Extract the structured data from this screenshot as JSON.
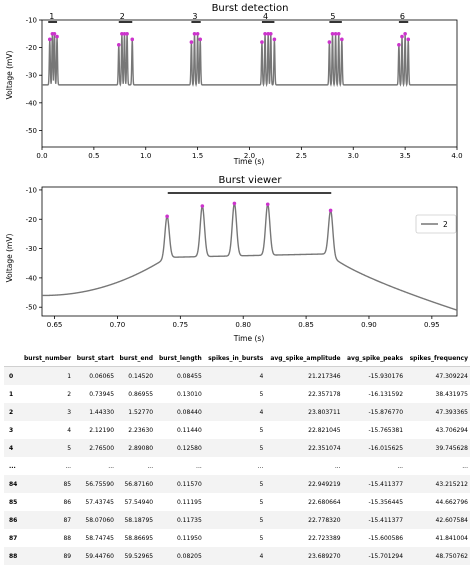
{
  "chart_data": [
    {
      "type": "line",
      "title": "Burst detection",
      "xlabel": "Time (s)",
      "ylabel": "Voltage (mV)",
      "xlim": [
        0.0,
        4.0
      ],
      "ylim": [
        -56,
        -10
      ],
      "xticks": [
        "0.0",
        "0.5",
        "1.0",
        "1.5",
        "2.0",
        "2.5",
        "3.0",
        "3.5",
        "4.0"
      ],
      "yticks": [
        "-10",
        "-20",
        "-30",
        "-40",
        "-50"
      ],
      "series_color": "#777777",
      "peak_color": "#cc33cc",
      "baseline_mV": -53,
      "burst_labels": [
        "1",
        "2",
        "3",
        "4",
        "5",
        "6"
      ],
      "bursts": [
        {
          "label": "1",
          "start": 0.06,
          "end": 0.145,
          "spikes_t": [
            0.075,
            0.1,
            0.12,
            0.145
          ],
          "peaks_mV": [
            -17,
            -15,
            -15,
            -16
          ]
        },
        {
          "label": "2",
          "start": 0.74,
          "end": 0.87,
          "spikes_t": [
            0.74,
            0.77,
            0.795,
            0.82,
            0.87
          ],
          "peaks_mV": [
            -19,
            -15,
            -15,
            -15,
            -17
          ]
        },
        {
          "label": "3",
          "start": 1.44,
          "end": 1.53,
          "spikes_t": [
            1.44,
            1.47,
            1.5,
            1.525
          ],
          "peaks_mV": [
            -18,
            -15,
            -15,
            -17
          ]
        },
        {
          "label": "4",
          "start": 2.12,
          "end": 2.24,
          "spikes_t": [
            2.12,
            2.15,
            2.18,
            2.205,
            2.24
          ],
          "peaks_mV": [
            -18,
            -15,
            -15,
            -15,
            -17
          ]
        },
        {
          "label": "5",
          "start": 2.77,
          "end": 2.89,
          "spikes_t": [
            2.77,
            2.8,
            2.83,
            2.86,
            2.89
          ],
          "peaks_mV": [
            -18,
            -15,
            -15,
            -15,
            -17
          ]
        },
        {
          "label": "6",
          "start": 3.44,
          "end": 3.53,
          "spikes_t": [
            3.44,
            3.47,
            3.5,
            3.53
          ],
          "peaks_mV": [
            -19,
            -16,
            -15,
            -17
          ]
        }
      ]
    },
    {
      "type": "line",
      "title": "Burst viewer",
      "xlabel": "Time (s)",
      "ylabel": "Voltage (mV)",
      "xlim": [
        0.64,
        0.97
      ],
      "ylim": [
        -53,
        -9
      ],
      "xticks": [
        "0.65",
        "0.70",
        "0.75",
        "0.80",
        "0.85",
        "0.90",
        "0.95"
      ],
      "yticks": [
        "-10",
        "-20",
        "-30",
        "-40",
        "-50"
      ],
      "legend": {
        "label": "2",
        "position": "top-right"
      },
      "series_color": "#777777",
      "peak_color": "#cc33cc",
      "burst_span": [
        0.74,
        0.87
      ],
      "spikes_t": [
        0.7395,
        0.7675,
        0.793,
        0.8195,
        0.8695
      ],
      "peaks_mV": [
        -19,
        -15.5,
        -14.6,
        -14.9,
        -17
      ]
    }
  ],
  "table": {
    "columns": [
      "",
      "burst_number",
      "burst_start",
      "burst_end",
      "burst_length",
      "spikes_in_bursts",
      "avg_spike_amplitude",
      "avg_spike_peaks",
      "spikes_frequency"
    ],
    "rows": [
      [
        "0",
        "1",
        "0.06065",
        "0.14520",
        "0.08455",
        "4",
        "21.217346",
        "-15.930176",
        "47.309224"
      ],
      [
        "1",
        "2",
        "0.73945",
        "0.86955",
        "0.13010",
        "5",
        "22.357178",
        "-16.131592",
        "38.431975"
      ],
      [
        "2",
        "3",
        "1.44330",
        "1.52770",
        "0.08440",
        "4",
        "23.803711",
        "-15.876770",
        "47.393365"
      ],
      [
        "3",
        "4",
        "2.12190",
        "2.23630",
        "0.11440",
        "5",
        "22.821045",
        "-15.765381",
        "43.706294"
      ],
      [
        "4",
        "5",
        "2.76500",
        "2.89080",
        "0.12580",
        "5",
        "22.351074",
        "-16.015625",
        "39.745628"
      ],
      [
        "...",
        "...",
        "...",
        "...",
        "...",
        "...",
        "...",
        "...",
        "..."
      ],
      [
        "84",
        "85",
        "56.75590",
        "56.87160",
        "0.11570",
        "5",
        "22.949219",
        "-15.411377",
        "43.215212"
      ],
      [
        "85",
        "86",
        "57.43745",
        "57.54940",
        "0.11195",
        "5",
        "22.680664",
        "-15.356445",
        "44.662796"
      ],
      [
        "86",
        "87",
        "58.07060",
        "58.18795",
        "0.11735",
        "5",
        "22.778320",
        "-15.411377",
        "42.607584"
      ],
      [
        "87",
        "88",
        "58.74745",
        "58.86695",
        "0.11950",
        "5",
        "22.723389",
        "-15.600586",
        "41.841004"
      ],
      [
        "88",
        "89",
        "59.44760",
        "59.52965",
        "0.08205",
        "4",
        "23.689270",
        "-15.701294",
        "48.750762"
      ]
    ]
  }
}
